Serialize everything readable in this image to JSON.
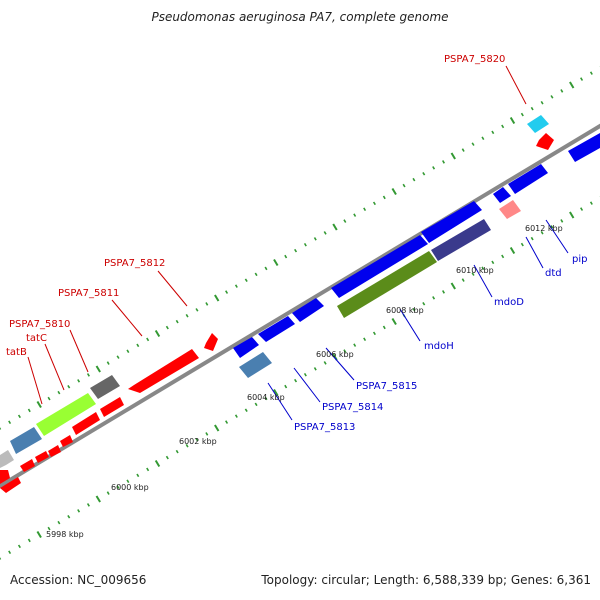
{
  "title": "Pseudomonas aeruginosa PA7, complete genome",
  "accession": "Accession: NC_009656",
  "summary": "Topology: circular; Length: 6,588,339 bp; Genes: 6,361",
  "tick_labels": [
    "5998 kbp",
    "6000 kbp",
    "6002 kbp",
    "6004 kbp",
    "6006 kbp",
    "6008 kbp",
    "6010 kbp",
    "6012 kbp"
  ],
  "genes": {
    "reverse": [
      "tatB",
      "tatC",
      "PSPA7_5810",
      "PSPA7_5811",
      "PSPA7_5812",
      "PSPA7_5820"
    ],
    "forward": [
      "PSPA7_5813",
      "PSPA7_5814",
      "PSPA7_5815",
      "mdoH",
      "mdoD",
      "dtd",
      "pip"
    ]
  },
  "colors": {
    "reverse_cds": "#ff0000",
    "forward_cds": "#0000ee",
    "reverse_label": "#cc0000",
    "forward_label": "#0000cc",
    "backbone": "#888888",
    "tick": "#339933",
    "rna_light": "#99ff33",
    "rna_dark": "#5b8c1a",
    "gray": "#666666",
    "steel": "#4a7fb0",
    "cyan": "#22ccee",
    "pink": "#ff8888",
    "slate": "#3a3a8c"
  }
}
